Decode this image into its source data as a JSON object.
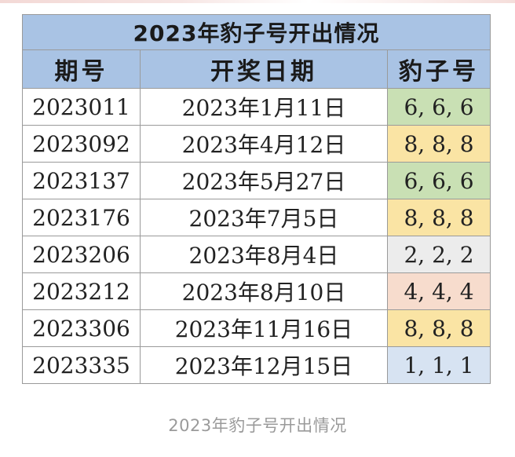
{
  "table": {
    "title": "2023年豹子号开出情况",
    "headers": [
      "期号",
      "开奖日期",
      "豹子号"
    ],
    "rows": [
      {
        "issue": "2023011",
        "date": "2023年1月11日",
        "number": "6, 6, 6",
        "highlight": "#c9e0b4"
      },
      {
        "issue": "2023092",
        "date": "2023年4月12日",
        "number": "8, 8, 8",
        "highlight": "#fae4a4"
      },
      {
        "issue": "2023137",
        "date": "2023年5月27日",
        "number": "6, 6, 6",
        "highlight": "#c9e0b4"
      },
      {
        "issue": "2023176",
        "date": "2023年7月5日",
        "number": "8, 8, 8",
        "highlight": "#fae4a4"
      },
      {
        "issue": "2023206",
        "date": "2023年8月4日",
        "number": "2, 2, 2",
        "highlight": "#ececec"
      },
      {
        "issue": "2023212",
        "date": "2023年8月10日",
        "number": "4, 4, 4",
        "highlight": "#f7dccd"
      },
      {
        "issue": "2023306",
        "date": "2023年11月16日",
        "number": "8, 8, 8",
        "highlight": "#fae4a4"
      },
      {
        "issue": "2023335",
        "date": "2023年12月15日",
        "number": "1, 1, 1",
        "highlight": "#d7e3f2"
      }
    ]
  },
  "colors": {
    "header_background": "#a9c3e4",
    "border": "#9a9a9a"
  },
  "caption": "2023年豹子号开出情况"
}
